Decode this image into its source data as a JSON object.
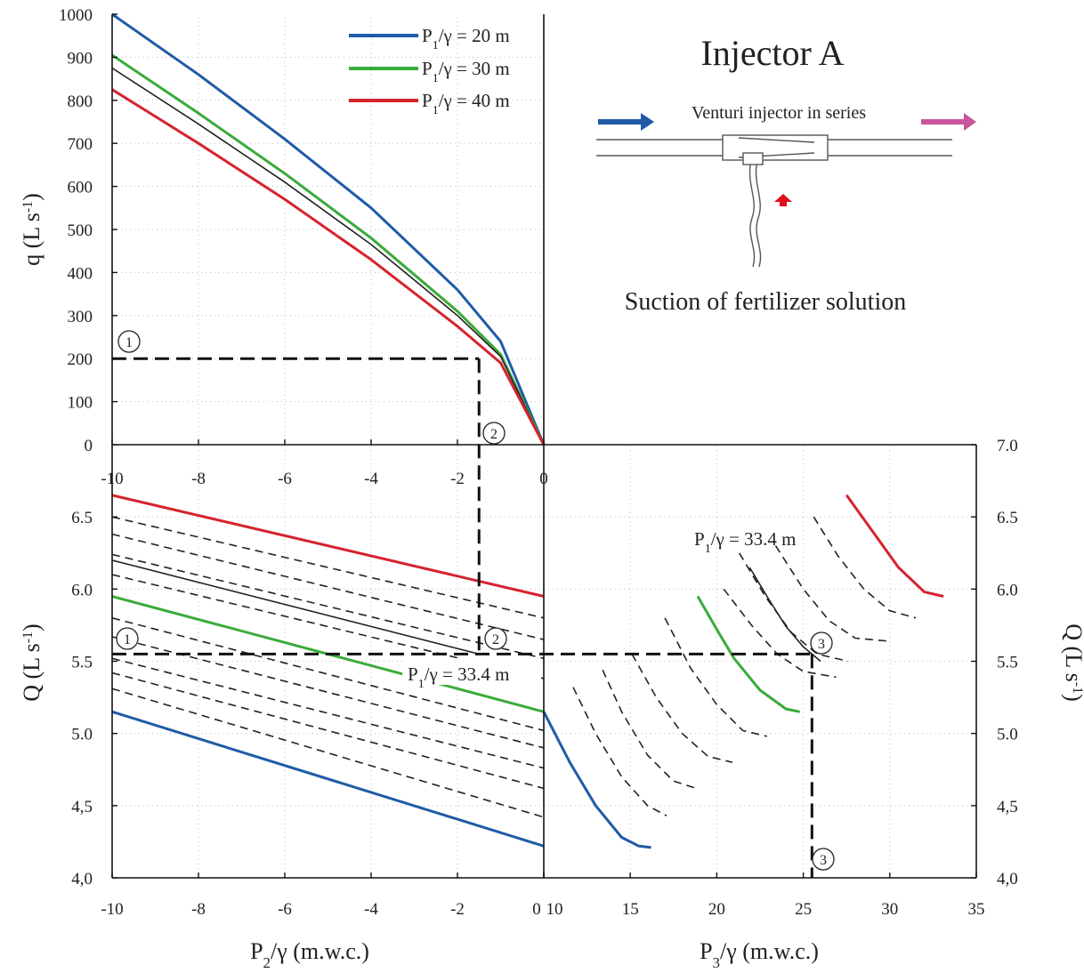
{
  "figure": {
    "title": "Injector A",
    "diagram_label": "Venturi injector in series",
    "suction_label": "Suction of fertilizer solution"
  },
  "colors": {
    "p20": "#1f5ba6",
    "p30": "#3aab3a",
    "p40": "#d6232e",
    "dashed": "#222222",
    "arrow_in": "#1f5ba6",
    "arrow_out": "#c9569c",
    "arrow_up": "#e0101a"
  },
  "legend": [
    {
      "label": "P1/γ = 20 m",
      "color": "#1f5ba6"
    },
    {
      "label": "P1/γ = 30 m",
      "color": "#3aab3a"
    },
    {
      "label": "P1/γ = 40 m",
      "color": "#d6232e"
    }
  ],
  "annotations": {
    "p334_bottom_left": "P1/γ = 33.4 m",
    "p334_bottom_right": "P1/γ = 33.4 m",
    "markers": [
      "1",
      "2",
      "3"
    ]
  },
  "chart_data": [
    {
      "type": "line",
      "panel": "top-left",
      "xlabel": "",
      "ylabel": "q (L s-1)",
      "xlim": [
        -10,
        0
      ],
      "ylim": [
        0,
        1000
      ],
      "xticks": [
        "-10",
        "-8",
        "-6",
        "-4",
        "-2",
        "0"
      ],
      "yticks": [
        "0",
        "100",
        "200",
        "300",
        "400",
        "500",
        "600",
        "700",
        "800",
        "900",
        "1000"
      ],
      "series": [
        {
          "name": "P1/γ = 20 m",
          "color": "#1f5ba6",
          "x": [
            -10,
            -8,
            -6,
            -4,
            -2,
            -1,
            0
          ],
          "y": [
            1000,
            860,
            710,
            550,
            360,
            240,
            0
          ]
        },
        {
          "name": "P1/γ = 30 m",
          "color": "#3aab3a",
          "x": [
            -10,
            -8,
            -6,
            -4,
            -2,
            -1,
            0
          ],
          "y": [
            905,
            770,
            630,
            480,
            310,
            210,
            0
          ]
        },
        {
          "name": "",
          "color": "#222222",
          "x": [
            -10,
            -8,
            -6,
            -4,
            -2,
            -1,
            0
          ],
          "y": [
            875,
            745,
            610,
            465,
            300,
            205,
            0
          ]
        },
        {
          "name": "P1/γ = 40 m",
          "color": "#d6232e",
          "x": [
            -10,
            -8,
            -6,
            -4,
            -2,
            -1,
            0
          ],
          "y": [
            825,
            700,
            570,
            430,
            275,
            190,
            0
          ]
        }
      ],
      "guides": {
        "q": 200,
        "p2": -1.5
      }
    },
    {
      "type": "line",
      "panel": "bottom-left",
      "xlabel": "P2/γ (m.w.c.)",
      "ylabel": "Q (L s-1)",
      "xlim": [
        -10,
        0
      ],
      "ylim": [
        4.0,
        7.0
      ],
      "xticks": [
        "-10",
        "-8",
        "-6",
        "-4",
        "-2",
        "0"
      ],
      "yticks": [
        "4,0",
        "4,5",
        "5.0",
        "5.5",
        "6.0",
        "6.5"
      ],
      "series": [
        {
          "name": "P1/γ = 40 m",
          "color": "#d6232e",
          "x": [
            -10,
            0
          ],
          "y": [
            6.65,
            5.95
          ]
        },
        {
          "name": "P1/γ = 30 m",
          "color": "#3aab3a",
          "x": [
            -10,
            0
          ],
          "y": [
            5.95,
            5.15
          ]
        },
        {
          "name": "P1/γ = 33.4 m",
          "color": "#222222",
          "x": [
            -10,
            -1.5
          ],
          "y": [
            6.2,
            5.55
          ]
        },
        {
          "name": "P1/γ = 20 m",
          "color": "#1f5ba6",
          "x": [
            -10,
            0
          ],
          "y": [
            5.15,
            4.22
          ]
        }
      ],
      "dashed_lines": [
        {
          "x": [
            -10,
            0
          ],
          "y": [
            6.5,
            5.8
          ]
        },
        {
          "x": [
            -10,
            0
          ],
          "y": [
            6.38,
            5.65
          ]
        },
        {
          "x": [
            -10,
            0
          ],
          "y": [
            6.24,
            5.52
          ]
        },
        {
          "x": [
            -10,
            0
          ],
          "y": [
            6.1,
            5.38
          ]
        },
        {
          "x": [
            -10,
            0
          ],
          "y": [
            5.8,
            5.02
          ]
        },
        {
          "x": [
            -10,
            0
          ],
          "y": [
            5.67,
            4.9
          ]
        },
        {
          "x": [
            -10,
            0
          ],
          "y": [
            5.52,
            4.76
          ]
        },
        {
          "x": [
            -10,
            0
          ],
          "y": [
            5.42,
            4.62
          ]
        },
        {
          "x": [
            -10,
            0
          ],
          "y": [
            5.31,
            4.42
          ]
        }
      ],
      "guides": {
        "Q": 5.55,
        "p2": -1.5
      }
    },
    {
      "type": "line",
      "panel": "bottom-right",
      "xlabel": "P3/γ (m.w.c.)",
      "ylabel": "Q (L s-1)",
      "xlim": [
        10,
        35
      ],
      "ylim": [
        4.0,
        7.0
      ],
      "xticks": [
        "10",
        "15",
        "20",
        "25",
        "30",
        "35"
      ],
      "yticks": [
        "4,0",
        "4,5",
        "5.0",
        "5.5",
        "6.0",
        "6.5",
        "7.0"
      ],
      "series": [
        {
          "name": "P1/γ = 20 m",
          "color": "#1f5ba6",
          "x": [
            10,
            11.5,
            13,
            14.5,
            15.5,
            16.2
          ],
          "y": [
            5.15,
            4.8,
            4.5,
            4.28,
            4.22,
            4.21
          ]
        },
        {
          "name": "P1/γ = 30 m",
          "color": "#3aab3a",
          "x": [
            18.9,
            20,
            21,
            22.5,
            24,
            24.8
          ],
          "y": [
            5.95,
            5.72,
            5.52,
            5.3,
            5.17,
            5.15
          ]
        },
        {
          "name": "P1/γ = 33.4 m",
          "color": "#222222",
          "x": [
            21.9,
            23,
            24,
            25,
            26
          ],
          "y": [
            6.15,
            5.93,
            5.74,
            5.6,
            5.5
          ]
        },
        {
          "name": "P1/γ = 40 m",
          "color": "#d6232e",
          "x": [
            27.5,
            29,
            30.5,
            32,
            33.1
          ],
          "y": [
            6.65,
            6.4,
            6.15,
            5.98,
            5.95
          ]
        }
      ],
      "dashed_lines": [
        {
          "x": [
            11.7,
            13,
            14.5,
            16,
            17.1
          ],
          "y": [
            5.32,
            5.0,
            4.7,
            4.5,
            4.43
          ]
        },
        {
          "x": [
            13.4,
            14.5,
            16,
            17.5,
            18.8
          ],
          "y": [
            5.44,
            5.15,
            4.85,
            4.67,
            4.62
          ]
        },
        {
          "x": [
            15.1,
            16.5,
            18,
            19.5,
            20.9
          ],
          "y": [
            5.55,
            5.25,
            5.0,
            4.84,
            4.8
          ]
        },
        {
          "x": [
            17.0,
            18.5,
            20,
            21.5,
            22.9
          ],
          "y": [
            5.8,
            5.45,
            5.2,
            5.02,
            4.98
          ]
        },
        {
          "x": [
            20.4,
            22,
            23.5,
            25,
            26.9
          ],
          "y": [
            6.0,
            5.75,
            5.55,
            5.43,
            5.39
          ]
        },
        {
          "x": [
            21.3,
            22.8,
            24.3,
            25.8,
            27.6
          ],
          "y": [
            6.25,
            5.95,
            5.7,
            5.55,
            5.5
          ]
        },
        {
          "x": [
            23.4,
            25,
            26.5,
            28,
            29.9
          ],
          "y": [
            6.3,
            6.0,
            5.78,
            5.66,
            5.64
          ]
        },
        {
          "x": [
            25.6,
            27,
            28.5,
            30,
            31.5
          ],
          "y": [
            6.5,
            6.23,
            6.0,
            5.85,
            5.8
          ]
        }
      ],
      "guides": {
        "Q": 5.55,
        "p3": 25.5
      }
    }
  ]
}
